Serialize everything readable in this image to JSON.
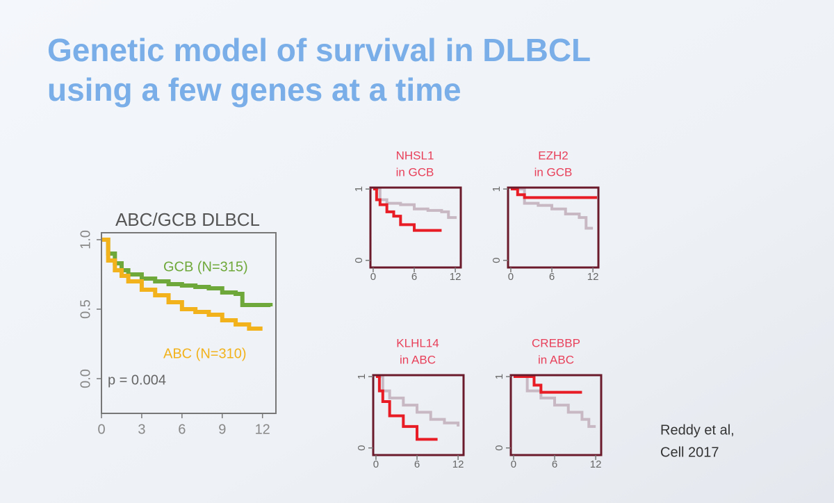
{
  "title": [
    "Genetic model of survival in DLBCL",
    "using a few genes at a time"
  ],
  "citation": [
    "Reddy et al,",
    "Cell 2017"
  ],
  "chart_data": [
    {
      "type": "line",
      "title": [
        "ABC/GCB DLBCL"
      ],
      "annotation": "p = 0.004",
      "xlim": [
        0,
        13
      ],
      "ylim": [
        -0.25,
        1.05
      ],
      "xticks": [
        0,
        3,
        6,
        9,
        12
      ],
      "yticks": [
        {
          "value": 0,
          "label": "0.0"
        },
        {
          "value": 0.5,
          "label": "0.5"
        },
        {
          "value": 1,
          "label": "1.0"
        }
      ],
      "series": [
        {
          "name": "GCB (N=315)",
          "color": "#6fa83a",
          "x": [
            0,
            0.5,
            1,
            1.5,
            2,
            3,
            4,
            5,
            6,
            7,
            8,
            9,
            10,
            10.5,
            12.6
          ],
          "values": [
            1,
            0.9,
            0.83,
            0.78,
            0.75,
            0.72,
            0.7,
            0.68,
            0.67,
            0.66,
            0.65,
            0.62,
            0.61,
            0.53,
            0.52
          ]
        },
        {
          "name": "ABC (N=310)",
          "color": "#f2b21c",
          "x": [
            0,
            0.5,
            1,
            1.5,
            2,
            3,
            4,
            5,
            6,
            7,
            8,
            9,
            10,
            11,
            12
          ],
          "values": [
            1,
            0.85,
            0.78,
            0.74,
            0.7,
            0.64,
            0.6,
            0.55,
            0.5,
            0.48,
            0.46,
            0.42,
            0.39,
            0.36,
            0.36
          ]
        }
      ]
    },
    {
      "type": "line",
      "title": [
        "NHSL1",
        "in GCB"
      ],
      "xlim": [
        -0.4,
        12.8
      ],
      "ylim": [
        -0.1,
        1.02
      ],
      "xticks": [
        0,
        6,
        12
      ],
      "yticks": [
        0,
        1
      ],
      "series": [
        {
          "color": "#c8b8c4",
          "x": [
            0,
            1,
            2,
            4,
            6,
            8,
            10,
            11,
            12
          ],
          "values": [
            1,
            0.85,
            0.8,
            0.78,
            0.72,
            0.7,
            0.68,
            0.6,
            0.58
          ]
        },
        {
          "color": "#e81c24",
          "x": [
            0,
            0.5,
            1,
            2,
            3,
            4,
            5,
            6,
            8,
            10
          ],
          "values": [
            1,
            0.85,
            0.78,
            0.68,
            0.62,
            0.5,
            0.5,
            0.42,
            0.42,
            0.42
          ]
        }
      ]
    },
    {
      "type": "line",
      "title": [
        "EZH2",
        "in GCB"
      ],
      "xlim": [
        -0.4,
        12.8
      ],
      "ylim": [
        -0.1,
        1.02
      ],
      "xticks": [
        0,
        6,
        12
      ],
      "yticks": [
        0,
        1
      ],
      "series": [
        {
          "color": "#c8b8c4",
          "x": [
            0,
            2,
            4,
            6,
            8,
            10,
            11,
            12
          ],
          "values": [
            1,
            0.8,
            0.77,
            0.72,
            0.65,
            0.6,
            0.45,
            0.45
          ]
        },
        {
          "color": "#e81c24",
          "x": [
            0,
            1,
            2,
            12.6
          ],
          "values": [
            1,
            0.92,
            0.88,
            0.88
          ]
        }
      ]
    },
    {
      "type": "line",
      "title": [
        "KLHL14",
        "in ABC"
      ],
      "xlim": [
        -0.4,
        12.8
      ],
      "ylim": [
        -0.1,
        1.02
      ],
      "xticks": [
        0,
        6,
        12
      ],
      "yticks": [
        0,
        1
      ],
      "series": [
        {
          "color": "#c8b8c4",
          "x": [
            0,
            1,
            2,
            4,
            6,
            8,
            10,
            12
          ],
          "values": [
            1,
            0.8,
            0.7,
            0.6,
            0.5,
            0.4,
            0.35,
            0.3
          ]
        },
        {
          "color": "#e81c24",
          "x": [
            0,
            0.5,
            1,
            2,
            3,
            4,
            5,
            6,
            9
          ],
          "values": [
            1,
            0.8,
            0.65,
            0.45,
            0.45,
            0.3,
            0.3,
            0.12,
            0.12
          ]
        }
      ]
    },
    {
      "type": "line",
      "title": [
        "CREBBP",
        "in ABC"
      ],
      "xlim": [
        -0.4,
        12.8
      ],
      "ylim": [
        -0.1,
        1.02
      ],
      "xticks": [
        0,
        6,
        12
      ],
      "yticks": [
        0,
        1
      ],
      "series": [
        {
          "color": "#c8b8c4",
          "x": [
            0,
            2,
            4,
            6,
            8,
            10,
            11,
            12
          ],
          "values": [
            1,
            0.8,
            0.7,
            0.6,
            0.5,
            0.4,
            0.3,
            0.3
          ]
        },
        {
          "color": "#e81c24",
          "x": [
            0,
            3,
            4,
            10
          ],
          "values": [
            1,
            0.88,
            0.78,
            0.78
          ]
        }
      ]
    }
  ]
}
